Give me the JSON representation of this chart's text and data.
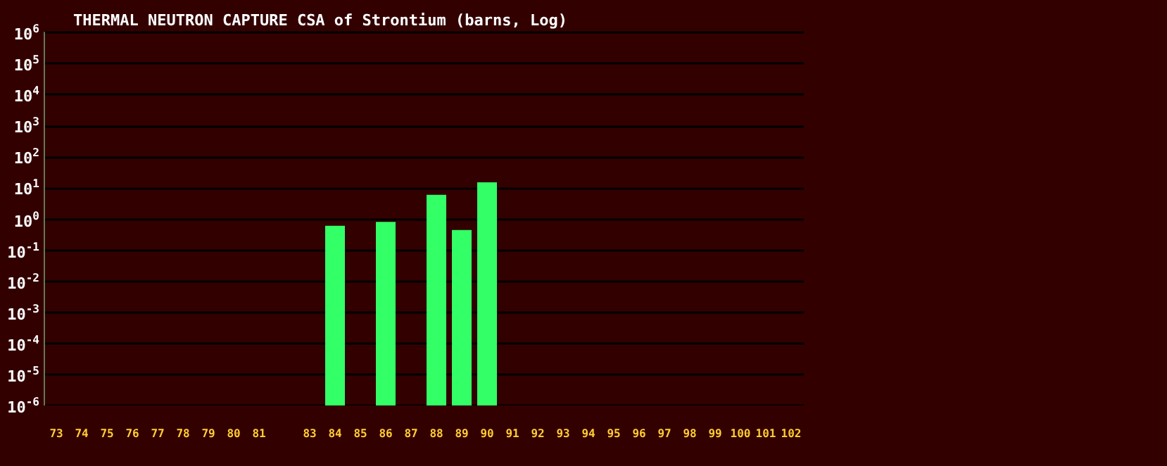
{
  "chart_data": {
    "type": "bar",
    "title": "THERMAL NEUTRON CAPTURE CSA of Strontium (barns, Log)",
    "categories": [
      "73",
      "74",
      "75",
      "76",
      "77",
      "78",
      "79",
      "80",
      "81",
      null,
      "83",
      "84",
      "85",
      "86",
      "87",
      "88",
      "89",
      "90",
      "91",
      "92",
      "93",
      "94",
      "95",
      "96",
      "97",
      "98",
      "99",
      "100",
      "101",
      "102"
    ],
    "values": [
      null,
      null,
      null,
      null,
      null,
      null,
      null,
      null,
      null,
      null,
      null,
      0.6,
      null,
      0.8,
      null,
      6,
      0.44,
      15,
      null,
      null,
      null,
      null,
      null,
      null,
      null,
      null,
      null,
      null,
      null,
      null
    ],
    "color": "#33ff66",
    "log": "y",
    "ylim": [
      1e-06,
      1000000
    ],
    "yticks": [
      {
        "value": 1e-06,
        "label": "10$^{-6}$"
      },
      {
        "value": 1e-05,
        "label": "10$^{-5}$"
      },
      {
        "value": 0.0001,
        "label": "10$^{-4}$"
      },
      {
        "value": 0.001,
        "label": "10$^{-3}$"
      },
      {
        "value": 0.01,
        "label": "10$^{-2}$"
      },
      {
        "value": 0.1,
        "label": "10$^{-1}$"
      },
      {
        "value": 1,
        "label": "10$^{0}$"
      },
      {
        "value": 10,
        "label": "10$^{1}$"
      },
      {
        "value": 100,
        "label": "10$^{2}$"
      },
      {
        "value": 1000,
        "label": "10$^{3}$"
      },
      {
        "value": 10000,
        "label": "10$^{4}$"
      },
      {
        "value": 100000,
        "label": "10$^{5}$"
      },
      {
        "value": 1000000,
        "label": "10$^{6}$"
      }
    ],
    "grid": "y"
  }
}
